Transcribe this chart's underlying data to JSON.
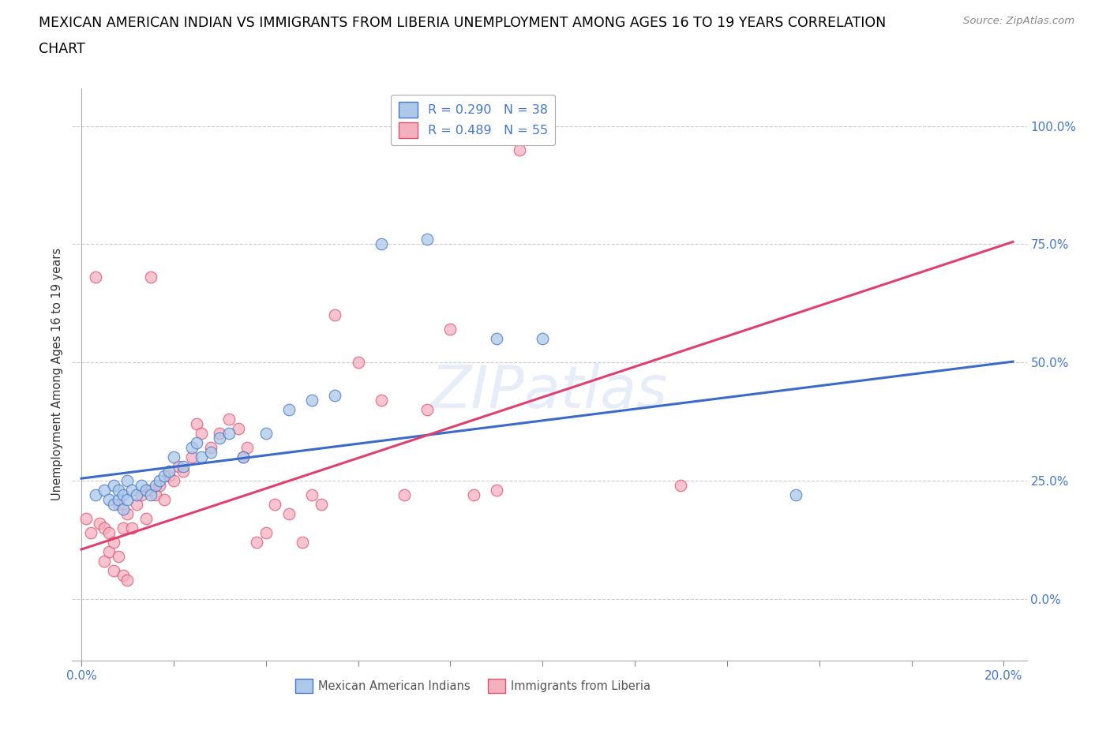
{
  "title_line1": "MEXICAN AMERICAN INDIAN VS IMMIGRANTS FROM LIBERIA UNEMPLOYMENT AMONG AGES 16 TO 19 YEARS CORRELATION",
  "title_line2": "CHART",
  "source": "Source: ZipAtlas.com",
  "ylabel": "Unemployment Among Ages 16 to 19 years",
  "watermark": "ZIPatlas",
  "xlim": [
    -0.002,
    0.205
  ],
  "ylim": [
    -0.13,
    1.08
  ],
  "ytick_positions": [
    0.0,
    0.25,
    0.5,
    0.75,
    1.0
  ],
  "ytick_labels": [
    "0.0%",
    "25.0%",
    "50.0%",
    "75.0%",
    "100.0%"
  ],
  "xtick_positions": [
    0.0,
    0.02,
    0.04,
    0.06,
    0.08,
    0.1,
    0.12,
    0.14,
    0.16,
    0.18,
    0.2
  ],
  "xtick_labels": [
    "0.0%",
    "",
    "",
    "",
    "",
    "",
    "",
    "",
    "",
    "",
    "20.0%"
  ],
  "legend_blue_label": "R = 0.290   N = 38",
  "legend_pink_label": "R = 0.489   N = 55",
  "blue_fill": "#adc8e8",
  "blue_edge": "#4477cc",
  "pink_fill": "#f5b0c0",
  "pink_edge": "#e05070",
  "line_blue": "#3a6bc9",
  "line_pink": "#e04070",
  "tick_color": "#4477cc",
  "blue_scatter_x": [
    0.003,
    0.005,
    0.006,
    0.007,
    0.007,
    0.008,
    0.008,
    0.009,
    0.009,
    0.01,
    0.01,
    0.011,
    0.012,
    0.013,
    0.014,
    0.015,
    0.016,
    0.017,
    0.018,
    0.019,
    0.02,
    0.022,
    0.024,
    0.025,
    0.026,
    0.028,
    0.03,
    0.032,
    0.035,
    0.04,
    0.045,
    0.05,
    0.055,
    0.065,
    0.075,
    0.09,
    0.1,
    0.155
  ],
  "blue_scatter_y": [
    0.22,
    0.23,
    0.21,
    0.2,
    0.24,
    0.21,
    0.23,
    0.22,
    0.19,
    0.21,
    0.25,
    0.23,
    0.22,
    0.24,
    0.23,
    0.22,
    0.24,
    0.25,
    0.26,
    0.27,
    0.3,
    0.28,
    0.32,
    0.33,
    0.3,
    0.31,
    0.34,
    0.35,
    0.3,
    0.35,
    0.4,
    0.42,
    0.43,
    0.75,
    0.76,
    0.55,
    0.55,
    0.22
  ],
  "pink_scatter_x": [
    0.001,
    0.002,
    0.003,
    0.004,
    0.005,
    0.005,
    0.006,
    0.006,
    0.007,
    0.007,
    0.008,
    0.008,
    0.009,
    0.009,
    0.01,
    0.01,
    0.011,
    0.012,
    0.013,
    0.014,
    0.015,
    0.015,
    0.016,
    0.017,
    0.018,
    0.019,
    0.02,
    0.021,
    0.022,
    0.024,
    0.025,
    0.026,
    0.028,
    0.03,
    0.032,
    0.034,
    0.035,
    0.036,
    0.038,
    0.04,
    0.042,
    0.045,
    0.048,
    0.05,
    0.052,
    0.055,
    0.06,
    0.065,
    0.07,
    0.075,
    0.08,
    0.085,
    0.09,
    0.095,
    0.13
  ],
  "pink_scatter_y": [
    0.17,
    0.14,
    0.68,
    0.16,
    0.08,
    0.15,
    0.1,
    0.14,
    0.06,
    0.12,
    0.09,
    0.2,
    0.05,
    0.15,
    0.04,
    0.18,
    0.15,
    0.2,
    0.22,
    0.17,
    0.23,
    0.68,
    0.22,
    0.24,
    0.21,
    0.26,
    0.25,
    0.28,
    0.27,
    0.3,
    0.37,
    0.35,
    0.32,
    0.35,
    0.38,
    0.36,
    0.3,
    0.32,
    0.12,
    0.14,
    0.2,
    0.18,
    0.12,
    0.22,
    0.2,
    0.6,
    0.5,
    0.42,
    0.22,
    0.4,
    0.57,
    0.22,
    0.23,
    0.95,
    0.24
  ],
  "blue_line_x0": 0.0,
  "blue_line_x1": 0.202,
  "blue_line_y0": 0.255,
  "blue_line_y1": 0.502,
  "pink_line_x0": 0.0,
  "pink_line_x1": 0.202,
  "pink_line_y0": 0.105,
  "pink_line_y1": 0.755,
  "legend_label_blue": "Mexican American Indians",
  "legend_label_pink": "Immigrants from Liberia",
  "bg_color": "#ffffff",
  "grid_color": "#cccccc",
  "spine_color": "#aaaaaa",
  "axis_blue": "#4477cc",
  "title_fontsize": 12.5,
  "marker_size": 110
}
